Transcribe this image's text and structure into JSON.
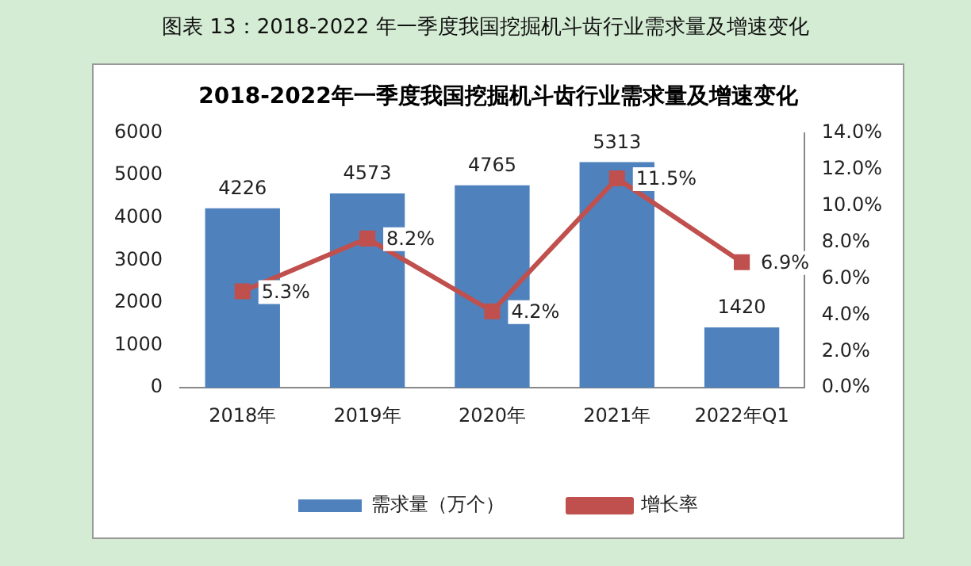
{
  "chart_data": {
    "type": "bar",
    "title": "2018-2022年一季度我国挖掘机斗齿行业需求量及增速变化",
    "annotations": [
      "图表 13：2018-2022 年一季度我国挖掘机斗齿行业需求量及增速变化"
    ],
    "categories": [
      "2018年",
      "2019年",
      "2020年",
      "2021年",
      "2022年Q1"
    ],
    "series": [
      {
        "name": "需求量（万个）",
        "color": "#4f81bd",
        "values": [
          4226,
          4573,
          4765,
          5313,
          1420
        ],
        "value_labels": [
          "4226",
          "4573",
          "4765",
          "5313",
          "1420"
        ]
      },
      {
        "name": "增长率",
        "type": "line",
        "axis": "y2",
        "color": "#c0504d",
        "marker": "square",
        "values": [
          5.3,
          8.2,
          4.2,
          11.5,
          6.9
        ],
        "value_labels": [
          "5.3%",
          "8.2%",
          "4.2%",
          "11.5%",
          "6.9%"
        ]
      }
    ],
    "ylim": [
      0,
      6000
    ],
    "yticks": [
      0,
      1000,
      2000,
      3000,
      4000,
      5000,
      6000
    ],
    "y2lim": [
      0,
      14
    ],
    "y2ticks": [
      {
        "value": 0,
        "label": "0.0%"
      },
      {
        "value": 2,
        "label": "2.0%"
      },
      {
        "value": 4,
        "label": "4.0%"
      },
      {
        "value": 6,
        "label": "6.0%"
      },
      {
        "value": 8,
        "label": "8.0%"
      },
      {
        "value": 10,
        "label": "10.0%"
      },
      {
        "value": 12,
        "label": "12.0%"
      },
      {
        "value": 14,
        "label": "14.0%"
      }
    ],
    "grid": false,
    "legend": "bottom"
  }
}
